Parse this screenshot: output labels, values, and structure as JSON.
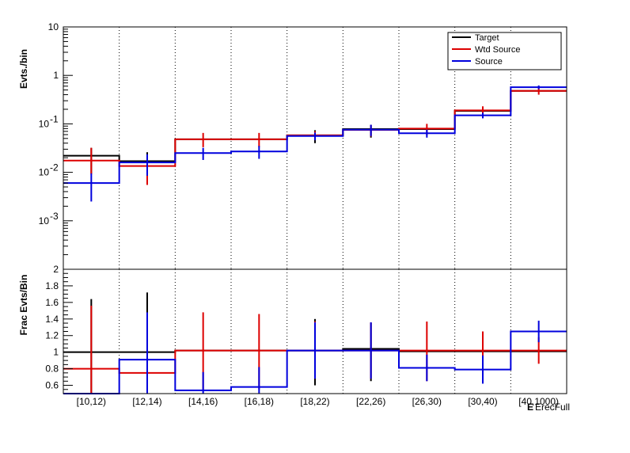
{
  "chart_data": [
    {
      "type": "line",
      "step": true,
      "categories": [
        "[10,12)",
        "[12,14)",
        "[14,16)",
        "[16,18)",
        "[18,22)",
        "[22,26)",
        "[26,30)",
        "[30,40)",
        "[40,1000)"
      ],
      "ylabel": "Evts./bin",
      "yscale": "log",
      "ylim": [
        0.0001,
        10
      ],
      "y_ticks": [
        {
          "base": "10",
          "exp": "-3"
        },
        {
          "base": "10",
          "exp": "-2"
        },
        {
          "base": "10",
          "exp": "-1"
        },
        {
          "base": "1",
          "exp": ""
        },
        {
          "base": "10",
          "exp": ""
        }
      ],
      "y_tick_values": [
        0.001,
        0.01,
        0.1,
        1,
        10
      ],
      "vertical_gridlines": "dotted at bin edges",
      "legend_position": "top-right",
      "series": [
        {
          "name": "Target",
          "color": "#000000",
          "values": [
            0.022,
            0.017,
            0.048,
            0.048,
            0.058,
            0.078,
            0.078,
            0.185,
            0.48
          ],
          "err_low": [
            0.0095,
            0.0085,
            0.048,
            0.048,
            0.04,
            0.052,
            0.078,
            0.185,
            0.48
          ],
          "err_high": [
            0.032,
            0.026,
            0.048,
            0.048,
            0.074,
            0.095,
            0.078,
            0.185,
            0.48
          ]
        },
        {
          "name": "Wtd Source",
          "color": "#dd0000",
          "values": [
            0.0175,
            0.0135,
            0.048,
            0.048,
            0.058,
            0.075,
            0.08,
            0.19,
            0.48
          ],
          "err_low": [
            0.009,
            0.0055,
            0.033,
            0.033,
            0.046,
            0.055,
            0.058,
            0.15,
            0.4
          ],
          "err_high": [
            0.032,
            0.021,
            0.065,
            0.065,
            0.07,
            0.095,
            0.1,
            0.23,
            0.56
          ]
        },
        {
          "name": "Source",
          "color": "#0000dd",
          "values": [
            0.006,
            0.016,
            0.025,
            0.027,
            0.056,
            0.076,
            0.064,
            0.15,
            0.57
          ],
          "err_low": [
            0.0025,
            0.0085,
            0.018,
            0.019,
            0.046,
            0.056,
            0.052,
            0.13,
            0.52
          ],
          "err_high": [
            0.0095,
            0.0235,
            0.032,
            0.035,
            0.066,
            0.096,
            0.076,
            0.17,
            0.62
          ]
        }
      ]
    },
    {
      "type": "line",
      "step": true,
      "categories": [
        "[10,12)",
        "[12,14)",
        "[14,16)",
        "[16,18)",
        "[18,22)",
        "[22,26)",
        "[26,30)",
        "[30,40)",
        "[40,1000)"
      ],
      "ylabel": "Frac Evts/Bin",
      "xlabel": "E",
      "xlabel_sub": "ErecFull",
      "ylim": [
        0.5,
        2
      ],
      "y_ticks": [
        "0.6",
        "0.8",
        "1",
        "1.2",
        "1.4",
        "1.6",
        "1.8",
        "2"
      ],
      "y_tick_values": [
        0.6,
        0.8,
        1,
        1.2,
        1.4,
        1.6,
        1.8,
        2
      ],
      "vertical_gridlines": "dotted at bin edges",
      "series": [
        {
          "name": "Target",
          "color": "#000000",
          "values": [
            1,
            1,
            1.02,
            1.02,
            1.02,
            1.04,
            1.01,
            1.01,
            1.01
          ],
          "err_low": [
            0.5,
            0.5,
            1.02,
            1.02,
            0.6,
            0.65,
            1.01,
            1.01,
            1.01
          ],
          "err_high": [
            1.64,
            1.72,
            1.02,
            1.02,
            1.4,
            1.35,
            1.01,
            1.01,
            1.01
          ]
        },
        {
          "name": "Wtd Source",
          "color": "#dd0000",
          "values": [
            0.8,
            0.75,
            1.02,
            1.02,
            1.02,
            1.02,
            1.02,
            1.02,
            1.02
          ],
          "err_low": [
            0.5,
            0.5,
            0.55,
            0.55,
            0.68,
            0.68,
            0.65,
            0.82,
            0.86
          ],
          "err_high": [
            1.56,
            1.08,
            1.48,
            1.46,
            1.37,
            1.36,
            1.37,
            1.25,
            1.18
          ]
        },
        {
          "name": "Source",
          "color": "#0000dd",
          "values": [
            0.5,
            0.91,
            0.54,
            0.58,
            1.02,
            1.02,
            0.81,
            0.79,
            1.25
          ],
          "err_low": [
            0.5,
            0.5,
            0.5,
            0.5,
            0.68,
            0.68,
            0.65,
            0.62,
            1.12
          ],
          "err_high": [
            0.5,
            1.48,
            0.76,
            0.82,
            1.36,
            1.36,
            0.97,
            0.96,
            1.38
          ]
        }
      ]
    }
  ]
}
